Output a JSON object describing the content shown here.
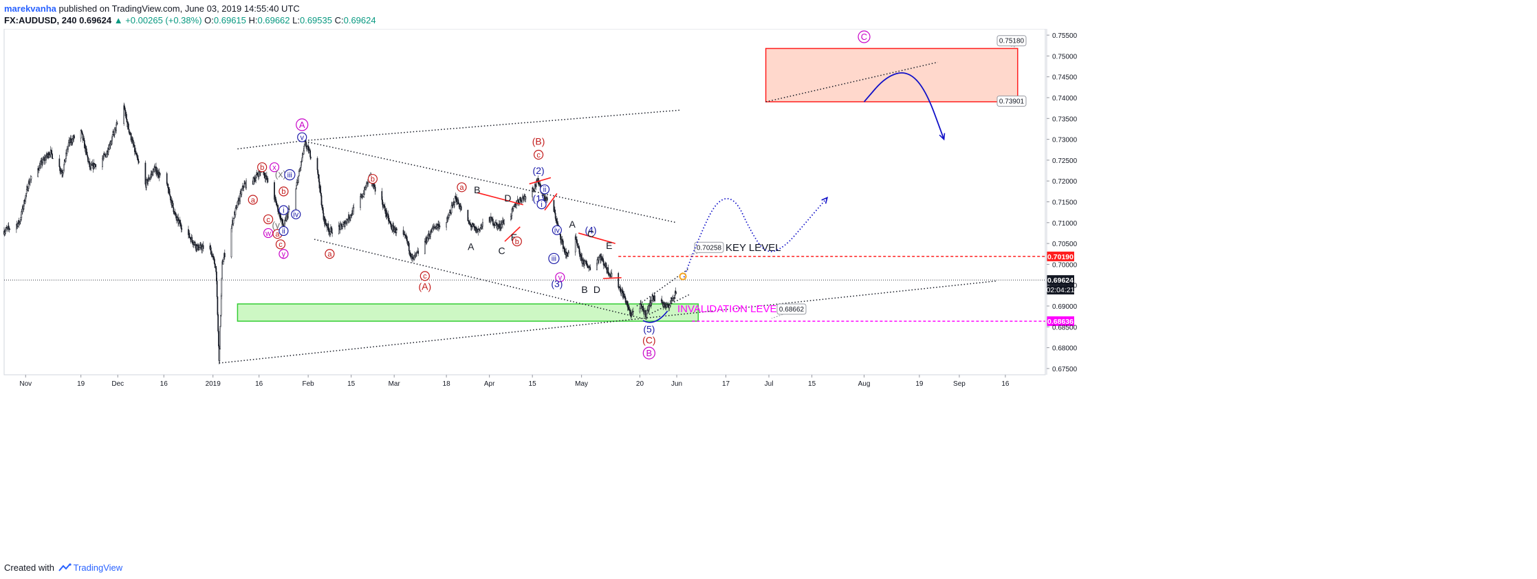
{
  "header": {
    "author": "marekvanha",
    "published_text": " published on TradingView.com, June 03, 2019 14:55:40 UTC",
    "symbol": "FX:AUDUSD, 240",
    "last_price": "0.69624",
    "change_arrow": "▲",
    "change": "+0.00265 (+0.38%)",
    "open_label": "O:",
    "open": "0.69615",
    "high_label": "H:",
    "high": "0.69662",
    "low_label": "L:",
    "low": "0.69535",
    "close_label": "C:",
    "close": "0.69624"
  },
  "footer": {
    "created_with": "Created with",
    "brand": "TradingView"
  },
  "colors": {
    "candles": "#131722",
    "wave_red": "#c21818",
    "wave_blue": "#1a1aa8",
    "wave_magenta": "#c800c8",
    "wave_gray": "#777777",
    "key_level": "#ff1d1d",
    "invalidation": "#ff00ff",
    "resistance_fill": "#ffd8cc",
    "resistance_border": "#ff1d1d",
    "support_fill": "#cdf7c4",
    "support_border": "#33cc33",
    "projection": "#1010c8"
  },
  "chart_data": {
    "type": "candlestick",
    "y_axis": {
      "range": [
        0.6735,
        0.7565
      ],
      "ticks": [
        "0.67500",
        "0.68000",
        "0.68500",
        "0.69000",
        "0.69500",
        "0.70000",
        "0.70500",
        "0.71000",
        "0.71500",
        "0.72000",
        "0.72500",
        "0.73000",
        "0.73500",
        "0.74000",
        "0.74500",
        "0.75000",
        "0.75500"
      ]
    },
    "x_axis": {
      "start": "2018-10-25",
      "end": "2019-09-29",
      "ticks": [
        {
          "date": "2018-11-01",
          "label": "Nov"
        },
        {
          "date": "2018-11-19",
          "label": "19"
        },
        {
          "date": "2018-12-01",
          "label": "Dec"
        },
        {
          "date": "2018-12-16",
          "label": "16"
        },
        {
          "date": "2019-01-01",
          "label": "2019"
        },
        {
          "date": "2019-01-16",
          "label": "16"
        },
        {
          "date": "2019-02-01",
          "label": "Feb"
        },
        {
          "date": "2019-02-15",
          "label": "15"
        },
        {
          "date": "2019-03-01",
          "label": "Mar"
        },
        {
          "date": "2019-03-18",
          "label": "18"
        },
        {
          "date": "2019-04-01",
          "label": "Apr"
        },
        {
          "date": "2019-04-15",
          "label": "15"
        },
        {
          "date": "2019-05-01",
          "label": "May"
        },
        {
          "date": "2019-05-20",
          "label": "20"
        },
        {
          "date": "2019-06-01",
          "label": "Jun"
        },
        {
          "date": "2019-06-17",
          "label": "17"
        },
        {
          "date": "2019-07-01",
          "label": "Jul"
        },
        {
          "date": "2019-07-15",
          "label": "15"
        },
        {
          "date": "2019-08-01",
          "label": "Aug"
        },
        {
          "date": "2019-08-19",
          "label": "19"
        },
        {
          "date": "2019-09-01",
          "label": "Sep"
        },
        {
          "date": "2019-09-16",
          "label": "16"
        }
      ]
    },
    "price_path": [
      [
        "2018-10-25",
        0.708
      ],
      [
        "2018-10-30",
        0.71
      ],
      [
        "2018-11-02",
        0.7195
      ],
      [
        "2018-11-06",
        0.724
      ],
      [
        "2018-11-09",
        0.727
      ],
      [
        "2018-11-13",
        0.722
      ],
      [
        "2018-11-15",
        0.729
      ],
      [
        "2018-11-19",
        0.732
      ],
      [
        "2018-11-22",
        0.723
      ],
      [
        "2018-11-27",
        0.726
      ],
      [
        "2018-11-30",
        0.732
      ],
      [
        "2018-12-03",
        0.738
      ],
      [
        "2018-12-04",
        0.734
      ],
      [
        "2018-12-07",
        0.726
      ],
      [
        "2018-12-10",
        0.719
      ],
      [
        "2018-12-13",
        0.723
      ],
      [
        "2018-12-17",
        0.719
      ],
      [
        "2018-12-20",
        0.711
      ],
      [
        "2018-12-24",
        0.707
      ],
      [
        "2018-12-27",
        0.704
      ],
      [
        "2018-12-31",
        0.704
      ],
      [
        "2019-01-02",
        0.699
      ],
      [
        "2019-01-03",
        0.6765
      ],
      [
        "2019-01-04",
        0.7
      ],
      [
        "2019-01-08",
        0.712
      ],
      [
        "2019-01-11",
        0.719
      ],
      [
        "2019-01-14",
        0.72
      ],
      [
        "2019-01-17",
        0.723
      ],
      [
        "2019-01-21",
        0.716
      ],
      [
        "2019-01-24",
        0.709
      ],
      [
        "2019-01-28",
        0.718
      ],
      [
        "2019-01-31",
        0.729
      ],
      [
        "2019-02-04",
        0.723
      ],
      [
        "2019-02-06",
        0.711
      ],
      [
        "2019-02-08",
        0.708
      ],
      [
        "2019-02-12",
        0.709
      ],
      [
        "2019-02-15",
        0.712
      ],
      [
        "2019-02-19",
        0.717
      ],
      [
        "2019-02-21",
        0.721
      ],
      [
        "2019-02-25",
        0.715
      ],
      [
        "2019-02-28",
        0.709
      ],
      [
        "2019-03-05",
        0.706
      ],
      [
        "2019-03-07",
        0.701
      ],
      [
        "2019-03-10",
        0.704
      ],
      [
        "2019-03-14",
        0.709
      ],
      [
        "2019-03-18",
        0.71
      ],
      [
        "2019-03-21",
        0.716
      ],
      [
        "2019-03-25",
        0.71
      ],
      [
        "2019-03-28",
        0.708
      ],
      [
        "2019-04-01",
        0.711
      ],
      [
        "2019-04-04",
        0.709
      ],
      [
        "2019-04-08",
        0.712
      ],
      [
        "2019-04-10",
        0.715
      ],
      [
        "2019-04-12",
        0.716
      ],
      [
        "2019-04-15",
        0.718
      ],
      [
        "2019-04-17",
        0.72
      ],
      [
        "2019-04-19",
        0.716
      ],
      [
        "2019-04-22",
        0.713
      ],
      [
        "2019-04-24",
        0.707
      ],
      [
        "2019-04-26",
        0.702
      ],
      [
        "2019-04-29",
        0.706
      ],
      [
        "2019-05-01",
        0.701
      ],
      [
        "2019-05-04",
        0.699
      ],
      [
        "2019-05-07",
        0.702
      ],
      [
        "2019-05-10",
        0.698
      ],
      [
        "2019-05-13",
        0.695
      ],
      [
        "2019-05-15",
        0.692
      ],
      [
        "2019-05-17",
        0.688
      ],
      [
        "2019-05-20",
        0.69
      ],
      [
        "2019-05-22",
        0.688
      ],
      [
        "2019-05-24",
        0.692
      ],
      [
        "2019-05-27",
        0.691
      ],
      [
        "2019-05-29",
        0.6895
      ],
      [
        "2019-05-31",
        0.6925
      ],
      [
        "2019-06-03",
        0.6962
      ]
    ],
    "horizontal_levels": [
      {
        "name": "key-level",
        "value": 0.7019,
        "label": "KEY  LEVEL",
        "price_label": "0.70190",
        "callout": "0.70258",
        "style": "dashed",
        "color": "#ff1d1d"
      },
      {
        "name": "invalidation-level",
        "value": 0.68636,
        "label": "INVALIDATION LEVEL",
        "price_label": "0.68636",
        "callout": "0.68662",
        "style": "dashed",
        "color": "#ff00ff"
      },
      {
        "name": "last-price",
        "value": 0.69624,
        "price_label": "0.69624",
        "countdown": "02:04:21",
        "style": "dotted",
        "color": "#131722"
      }
    ],
    "zones": [
      {
        "name": "resistance-zone",
        "x0": "2019-06-30",
        "x1": "2019-09-20",
        "y0": 0.73901,
        "y1": 0.7518,
        "callout_top": "0.75180",
        "callout_bottom": "0.73901"
      },
      {
        "name": "support-zone",
        "x0": "2019-01-09",
        "x1": "2019-06-08",
        "y0": 0.68636,
        "y1": 0.6905
      }
    ],
    "trendlines": [
      {
        "from": [
          "2019-01-09",
          0.7277
        ],
        "to": [
          "2019-01-31",
          0.7297
        ]
      },
      {
        "from": [
          "2019-01-31",
          0.7297
        ],
        "to": [
          "2019-06-02",
          0.737
        ]
      },
      {
        "from": [
          "2019-06-30",
          0.739
        ],
        "to": [
          "2019-08-25",
          0.7485
        ]
      },
      {
        "from": [
          "2019-01-31",
          0.7295
        ],
        "to": [
          "2019-06-01",
          0.71
        ]
      },
      {
        "from": [
          "2019-02-03",
          0.706
        ],
        "to": [
          "2019-05-21",
          0.687
        ]
      },
      {
        "from": [
          "2019-01-03",
          0.6763
        ],
        "to": [
          "2019-09-13",
          0.696
        ]
      },
      {
        "from": [
          "2019-05-19",
          0.69
        ],
        "to": [
          "2019-06-05",
          0.699
        ]
      },
      {
        "from": [
          "2019-05-23",
          0.688
        ],
        "to": [
          "2019-06-05",
          0.6927
        ]
      }
    ],
    "red_segments": [
      {
        "from": [
          "2019-04-14",
          0.7193
        ],
        "to": [
          "2019-04-21",
          0.7208
        ]
      },
      {
        "from": [
          "2019-03-28",
          0.7172
        ],
        "to": [
          "2019-04-12",
          0.7143
        ]
      },
      {
        "from": [
          "2019-04-06",
          0.7055
        ],
        "to": [
          "2019-04-11",
          0.709
        ]
      },
      {
        "from": [
          "2019-04-19",
          0.713
        ],
        "to": [
          "2019-04-23",
          0.717
        ]
      },
      {
        "from": [
          "2019-04-30",
          0.7075
        ],
        "to": [
          "2019-05-12",
          0.705
        ]
      },
      {
        "from": [
          "2019-05-08",
          0.6966
        ],
        "to": [
          "2019-05-14",
          0.6968
        ]
      }
    ],
    "projections": [
      {
        "name": "projection-dotted",
        "style": "dotted",
        "points": [
          [
            "2019-06-03",
            0.6962
          ],
          [
            "2019-06-08",
            0.706
          ],
          [
            "2019-06-14",
            0.7155
          ],
          [
            "2019-06-20",
            0.716
          ],
          [
            "2019-06-25",
            0.708
          ],
          [
            "2019-06-30",
            0.7025
          ],
          [
            "2019-07-06",
            0.704
          ],
          [
            "2019-07-13",
            0.71
          ],
          [
            "2019-07-20",
            0.716
          ]
        ]
      },
      {
        "name": "projection-arc",
        "style": "solid",
        "points": [
          [
            "2019-08-01",
            0.739
          ],
          [
            "2019-08-08",
            0.745
          ],
          [
            "2019-08-15",
            0.7465
          ],
          [
            "2019-08-21",
            0.742
          ],
          [
            "2019-08-27",
            0.73
          ]
        ]
      }
    ],
    "wave_labels": [
      {
        "text": "A",
        "date": "2019-01-30",
        "price": 0.7335,
        "style": "circle",
        "color": "magenta"
      },
      {
        "text": "v",
        "date": "2019-01-30",
        "price": 0.7305,
        "style": "circle",
        "color": "blue"
      },
      {
        "text": "b",
        "date": "2019-01-17",
        "price": 0.7233,
        "style": "circle",
        "color": "red"
      },
      {
        "text": "x",
        "date": "2019-01-21",
        "price": 0.7233,
        "style": "circle",
        "color": "magenta"
      },
      {
        "text": "(x)",
        "date": "2019-01-23",
        "price": 0.7217,
        "style": "plain",
        "color": "gray"
      },
      {
        "text": "iii",
        "date": "2019-01-26",
        "price": 0.7215,
        "style": "circle",
        "color": "blue"
      },
      {
        "text": "b",
        "date": "2019-01-24",
        "price": 0.7175,
        "style": "circle",
        "color": "red"
      },
      {
        "text": "a",
        "date": "2019-01-14",
        "price": 0.7155,
        "style": "circle",
        "color": "red"
      },
      {
        "text": "c",
        "date": "2019-01-19",
        "price": 0.7108,
        "style": "circle",
        "color": "red"
      },
      {
        "text": "i",
        "date": "2019-01-24",
        "price": 0.713,
        "style": "circle",
        "color": "blue"
      },
      {
        "text": "iv",
        "date": "2019-01-28",
        "price": 0.712,
        "style": "circle",
        "color": "blue"
      },
      {
        "text": "(y)",
        "date": "2019-01-22",
        "price": 0.7095,
        "style": "plain",
        "color": "gray"
      },
      {
        "text": "w",
        "date": "2019-01-19",
        "price": 0.7075,
        "style": "circle",
        "color": "magenta"
      },
      {
        "text": "a",
        "date": "2019-01-22",
        "price": 0.7073,
        "style": "circle",
        "color": "red"
      },
      {
        "text": "ii",
        "date": "2019-01-24",
        "price": 0.708,
        "style": "circle",
        "color": "blue"
      },
      {
        "text": "c",
        "date": "2019-01-23",
        "price": 0.7048,
        "style": "circle",
        "color": "red"
      },
      {
        "text": "y",
        "date": "2019-01-24",
        "price": 0.7025,
        "style": "circle",
        "color": "magenta"
      },
      {
        "text": "a",
        "date": "2019-02-08",
        "price": 0.7025,
        "style": "circle",
        "color": "red"
      },
      {
        "text": "b",
        "date": "2019-02-22",
        "price": 0.7205,
        "style": "circle",
        "color": "red"
      },
      {
        "text": "c",
        "date": "2019-03-11",
        "price": 0.6972,
        "style": "circle",
        "color": "red"
      },
      {
        "text": "(A)",
        "date": "2019-03-11",
        "price": 0.6947,
        "style": "plain",
        "color": "red"
      },
      {
        "text": "a",
        "date": "2019-03-23",
        "price": 0.7185,
        "style": "circle",
        "color": "red"
      },
      {
        "text": "B",
        "date": "2019-03-28",
        "price": 0.7179,
        "style": "plain",
        "color": "black"
      },
      {
        "text": "A",
        "date": "2019-03-26",
        "price": 0.7043,
        "style": "plain",
        "color": "black"
      },
      {
        "text": "C",
        "date": "2019-04-05",
        "price": 0.7033,
        "style": "plain",
        "color": "black"
      },
      {
        "text": "D",
        "date": "2019-04-07",
        "price": 0.7159,
        "style": "plain",
        "color": "black"
      },
      {
        "text": "E",
        "date": "2019-04-09",
        "price": 0.7065,
        "style": "plain",
        "color": "black"
      },
      {
        "text": "b",
        "date": "2019-04-10",
        "price": 0.7055,
        "style": "circle",
        "color": "red"
      },
      {
        "text": "(B)",
        "date": "2019-04-17",
        "price": 0.7295,
        "style": "plain",
        "color": "red"
      },
      {
        "text": "c",
        "date": "2019-04-17",
        "price": 0.7263,
        "style": "circle",
        "color": "red"
      },
      {
        "text": "(2)",
        "date": "2019-04-17",
        "price": 0.7225,
        "style": "plain",
        "color": "blue"
      },
      {
        "text": "ii",
        "date": "2019-04-19",
        "price": 0.718,
        "style": "circle",
        "color": "blue"
      },
      {
        "text": "(1)",
        "date": "2019-04-17",
        "price": 0.7158,
        "style": "plain",
        "color": "blue"
      },
      {
        "text": "i",
        "date": "2019-04-18",
        "price": 0.7144,
        "style": "circle",
        "color": "blue"
      },
      {
        "text": "iv",
        "date": "2019-04-23",
        "price": 0.7082,
        "style": "circle",
        "color": "blue"
      },
      {
        "text": "A",
        "date": "2019-04-28",
        "price": 0.7096,
        "style": "plain",
        "color": "black"
      },
      {
        "text": "(4)",
        "date": "2019-05-04",
        "price": 0.7082,
        "style": "plain",
        "color": "blue"
      },
      {
        "text": "C",
        "date": "2019-05-04",
        "price": 0.7073,
        "style": "plain",
        "color": "black"
      },
      {
        "text": "E",
        "date": "2019-05-10",
        "price": 0.7045,
        "style": "plain",
        "color": "black"
      },
      {
        "text": "iii",
        "date": "2019-04-22",
        "price": 0.7014,
        "style": "circle",
        "color": "blue"
      },
      {
        "text": "v",
        "date": "2019-04-24",
        "price": 0.6969,
        "style": "circle",
        "color": "magenta"
      },
      {
        "text": "(3)",
        "date": "2019-04-23",
        "price": 0.6954,
        "style": "plain",
        "color": "blue"
      },
      {
        "text": "B",
        "date": "2019-05-02",
        "price": 0.694,
        "style": "plain",
        "color": "black"
      },
      {
        "text": "D",
        "date": "2019-05-06",
        "price": 0.694,
        "style": "plain",
        "color": "black"
      },
      {
        "text": "(5)",
        "date": "2019-05-23",
        "price": 0.6845,
        "style": "plain",
        "color": "blue"
      },
      {
        "text": "(C)",
        "date": "2019-05-23",
        "price": 0.6818,
        "style": "plain",
        "color": "red"
      },
      {
        "text": "B",
        "date": "2019-05-23",
        "price": 0.6787,
        "style": "circle",
        "color": "magenta"
      },
      {
        "text": "C",
        "date": "2019-08-01",
        "price": 0.7546,
        "style": "circle",
        "color": "magenta"
      }
    ]
  }
}
